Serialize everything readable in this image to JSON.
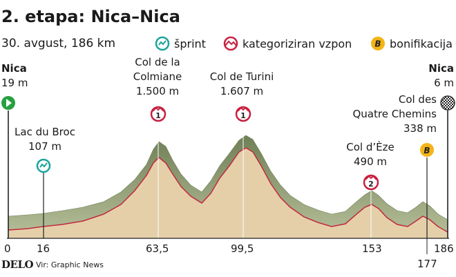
{
  "header": {
    "title": "2. etapa: Nica–Nica",
    "subtitle": "30. avgust, 186 km"
  },
  "legend": {
    "sprint": "šprint",
    "climb": "kategoriziran vzpon",
    "bonus": "bonifikacija",
    "bonus_symbol": "B"
  },
  "start": {
    "name": "Nica",
    "elevation": "19 m"
  },
  "finish": {
    "name": "Nica",
    "elevation": "6 m"
  },
  "points": {
    "lac_du_broc": {
      "line1": "Lac du Broc",
      "line2": "107 m"
    },
    "col_de_la_colmiane": {
      "line1": "Col de la",
      "line2": "Colmiane",
      "line3": "1.500 m",
      "category": "1"
    },
    "col_de_turini": {
      "line1": "Col de Turini",
      "line2": "1.607 m",
      "category": "1"
    },
    "col_d_eze": {
      "line1": "Col d’Èze",
      "line2": "490 m",
      "category": "2"
    },
    "col_des_quatre_chemins": {
      "line1": "Col des",
      "line2": "Quatre Chemins",
      "line3": "338 m"
    }
  },
  "km_ticks": [
    "0",
    "16",
    "63,5",
    "99,5",
    "153",
    "186",
    "177"
  ],
  "footer": {
    "brand": "DELO",
    "source": "Vir: Graphic News"
  },
  "colors": {
    "profile_fill": "#e5cfa9",
    "profile_side": "#8c9a72",
    "profile_line": "#c0293f",
    "sprint": "#1aa39a",
    "climb": "#c8203f",
    "bonus": "#f3b417",
    "start": "#27a040",
    "finish": "#333333"
  }
}
